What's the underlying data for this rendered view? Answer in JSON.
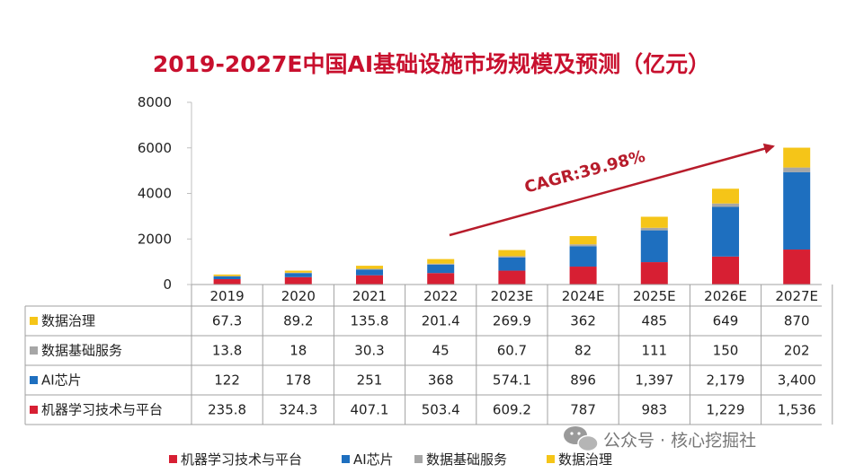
{
  "chart_data": {
    "type": "bar",
    "stacked": true,
    "title": "2019-2027E中国AI基础设施市场规模及预测（亿元）",
    "categories": [
      "2019",
      "2020",
      "2021",
      "2022",
      "2023E",
      "2024E",
      "2025E",
      "2026E",
      "2027E"
    ],
    "series": [
      {
        "name": "机器学习技术与平台",
        "color": "#d71f33",
        "values": [
          235.8,
          324.3,
          407.1,
          503.4,
          609.2,
          787,
          983,
          1229,
          1536
        ],
        "labels": [
          "235.8",
          "324.3",
          "407.1",
          "503.4",
          "609.2",
          "787",
          "983",
          "1,229",
          "1,536"
        ]
      },
      {
        "name": "AI芯片",
        "color": "#1e6fbf",
        "values": [
          122,
          178,
          251,
          368,
          574.1,
          896,
          1397,
          2179,
          3400
        ],
        "labels": [
          "122",
          "178",
          "251",
          "368",
          "574.1",
          "896",
          "1,397",
          "2,179",
          "3,400"
        ]
      },
      {
        "name": "数据基础服务",
        "color": "#a6a6a6",
        "values": [
          13.8,
          18,
          30.3,
          45,
          60.7,
          82,
          111,
          150,
          202
        ],
        "labels": [
          "13.8",
          "18",
          "30.3",
          "45",
          "60.7",
          "82",
          "111",
          "150",
          "202"
        ]
      },
      {
        "name": "数据治理",
        "color": "#f5c518",
        "values": [
          67.3,
          89.2,
          135.8,
          201.4,
          269.9,
          362,
          485,
          649,
          870
        ],
        "labels": [
          "67.3",
          "89.2",
          "135.8",
          "201.4",
          "269.9",
          "362",
          "485",
          "649",
          "870"
        ]
      }
    ],
    "table_row_order": [
      "数据治理",
      "数据基础服务",
      "AI芯片",
      "机器学习技术与平台"
    ],
    "legend_order": [
      "机器学习技术与平台",
      "AI芯片",
      "数据基础服务",
      "数据治理"
    ],
    "ylim": [
      0,
      8000
    ],
    "yticks": [
      0,
      2000,
      4000,
      6000,
      8000
    ],
    "ytick_labels": [
      "0",
      "2000",
      "4000",
      "6000",
      "8000"
    ],
    "annotation": "CAGR:39.98%"
  },
  "watermark": {
    "text": "公众号 · 核心挖掘社"
  }
}
